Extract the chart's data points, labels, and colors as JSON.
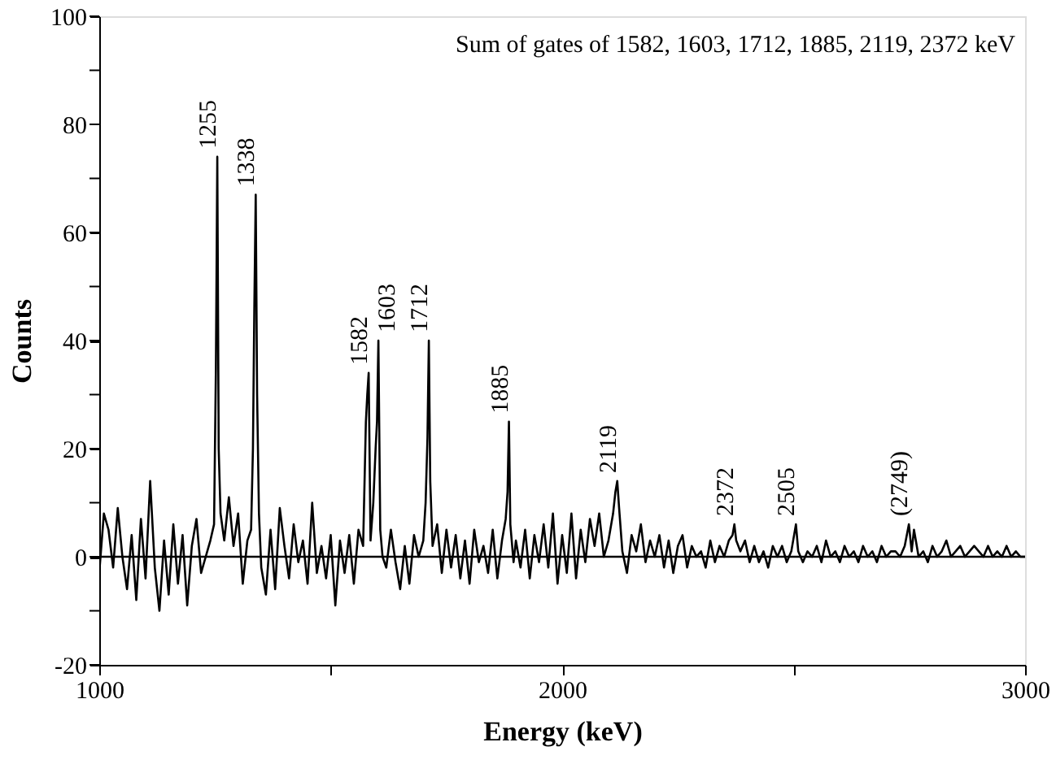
{
  "chart_data": {
    "type": "line",
    "title": "Sum of gates of 1582, 1603, 1712, 1885, 2119, 2372 keV",
    "xlabel": "Energy (keV)",
    "ylabel": "Counts",
    "xlim": [
      1000,
      3000
    ],
    "ylim": [
      -20,
      100
    ],
    "xticks": [
      1000,
      {
        "value": 1500,
        "label": null
      },
      2000,
      {
        "value": 2500,
        "label": null
      },
      3000
    ],
    "yticks": [
      -20,
      {
        "value": -10,
        "label": null
      },
      0,
      {
        "value": 10,
        "label": null
      },
      20,
      {
        "value": 30,
        "label": null
      },
      40,
      {
        "value": 50,
        "label": null
      },
      60,
      {
        "value": 70,
        "label": null
      },
      80,
      {
        "value": 90,
        "label": null
      },
      100
    ],
    "grid": false,
    "marker": "none",
    "line_style": "solid",
    "ref_lines": [
      {
        "axis": "y",
        "value": 0,
        "color": "#000000"
      }
    ],
    "annotations": [
      {
        "text": "1255",
        "x": 1255,
        "y": 74
      },
      {
        "text": "1338",
        "x": 1338,
        "y": 67
      },
      {
        "text": "1582",
        "x": 1582,
        "y": 34
      },
      {
        "text": "1603",
        "x": 1603,
        "y": 40
      },
      {
        "text": "1712",
        "x": 1712,
        "y": 40
      },
      {
        "text": "1885",
        "x": 1885,
        "y": 25
      },
      {
        "text": "2119",
        "x": 2119,
        "y": 14
      },
      {
        "text": "2372",
        "x": 2372,
        "y": 6
      },
      {
        "text": "2505",
        "x": 2505,
        "y": 6
      },
      {
        "text": "(2749)",
        "x": 2749,
        "y": 6
      }
    ],
    "series": [
      {
        "color": "#000000",
        "x": [
          1000,
          1010,
          1020,
          1030,
          1040,
          1050,
          1060,
          1070,
          1080,
          1090,
          1100,
          1110,
          1120,
          1130,
          1140,
          1150,
          1160,
          1170,
          1180,
          1190,
          1200,
          1210,
          1220,
          1230,
          1240,
          1248,
          1252,
          1255,
          1258,
          1262,
          1270,
          1280,
          1290,
          1300,
          1310,
          1320,
          1328,
          1332,
          1335,
          1338,
          1341,
          1345,
          1350,
          1360,
          1370,
          1380,
          1390,
          1400,
          1410,
          1420,
          1430,
          1440,
          1450,
          1460,
          1470,
          1480,
          1490,
          1500,
          1510,
          1520,
          1530,
          1540,
          1550,
          1560,
          1570,
          1576,
          1579,
          1582,
          1586,
          1592,
          1597,
          1600,
          1603,
          1607,
          1612,
          1620,
          1630,
          1640,
          1650,
          1660,
          1670,
          1680,
          1690,
          1700,
          1705,
          1709,
          1712,
          1715,
          1720,
          1730,
          1740,
          1750,
          1760,
          1770,
          1780,
          1790,
          1800,
          1810,
          1820,
          1830,
          1840,
          1850,
          1860,
          1870,
          1878,
          1882,
          1885,
          1888,
          1895,
          1900,
          1910,
          1920,
          1930,
          1940,
          1950,
          1960,
          1970,
          1980,
          1990,
          2000,
          2010,
          2020,
          2030,
          2040,
          2050,
          2060,
          2070,
          2080,
          2090,
          2100,
          2110,
          2115,
          2119,
          2123,
          2130,
          2140,
          2150,
          2160,
          2170,
          2180,
          2190,
          2200,
          2210,
          2220,
          2230,
          2240,
          2250,
          2260,
          2270,
          2280,
          2290,
          2300,
          2310,
          2320,
          2330,
          2340,
          2350,
          2360,
          2368,
          2372,
          2376,
          2385,
          2395,
          2405,
          2415,
          2425,
          2435,
          2445,
          2455,
          2465,
          2475,
          2485,
          2495,
          2505,
          2510,
          2520,
          2530,
          2540,
          2550,
          2560,
          2570,
          2580,
          2590,
          2600,
          2610,
          2620,
          2630,
          2640,
          2650,
          2660,
          2670,
          2680,
          2690,
          2700,
          2710,
          2720,
          2730,
          2740,
          2749,
          2755,
          2760,
          2770,
          2780,
          2790,
          2800,
          2810,
          2820,
          2830,
          2840,
          2850,
          2860,
          2870,
          2880,
          2890,
          2900,
          2910,
          2920,
          2930,
          2940,
          2950,
          2960,
          2970,
          2980,
          2990,
          3000
        ],
        "values": [
          -3,
          8,
          5,
          -2,
          9,
          0,
          -6,
          4,
          -8,
          7,
          -4,
          14,
          -2,
          -10,
          3,
          -7,
          6,
          -5,
          4,
          -9,
          2,
          7,
          -3,
          0,
          3,
          6,
          35,
          74,
          20,
          8,
          3,
          11,
          2,
          8,
          -5,
          3,
          5,
          20,
          46,
          67,
          30,
          8,
          -2,
          -7,
          5,
          -6,
          9,
          2,
          -4,
          6,
          -1,
          3,
          -5,
          10,
          -3,
          2,
          -4,
          4,
          -9,
          3,
          -3,
          4,
          -5,
          5,
          2,
          25,
          30,
          34,
          3,
          10,
          20,
          25,
          40,
          5,
          0,
          -2,
          5,
          -1,
          -6,
          2,
          -5,
          4,
          0,
          3,
          10,
          22,
          40,
          14,
          2,
          6,
          -3,
          5,
          -2,
          4,
          -4,
          3,
          -5,
          5,
          -1,
          2,
          -3,
          5,
          -4,
          3,
          7,
          12,
          25,
          6,
          -1,
          3,
          -2,
          5,
          -4,
          4,
          -1,
          6,
          -2,
          8,
          -5,
          4,
          -3,
          8,
          -4,
          5,
          -1,
          7,
          2,
          8,
          0,
          3,
          8,
          12,
          14,
          9,
          1,
          -3,
          4,
          1,
          6,
          -1,
          3,
          0,
          4,
          -2,
          3,
          -3,
          2,
          4,
          -2,
          2,
          0,
          1,
          -2,
          3,
          -1,
          2,
          0,
          3,
          4,
          6,
          3,
          1,
          3,
          -1,
          2,
          -1,
          1,
          -2,
          2,
          0,
          2,
          -1,
          1,
          6,
          1,
          -1,
          1,
          0,
          2,
          -1,
          3,
          0,
          1,
          -1,
          2,
          0,
          1,
          -1,
          2,
          0,
          1,
          -1,
          2,
          0,
          1,
          1,
          0,
          2,
          6,
          1,
          5,
          0,
          1,
          -1,
          2,
          0,
          1,
          3,
          0,
          1,
          2,
          0,
          1,
          2,
          1,
          0,
          2,
          0,
          1,
          0,
          2,
          0,
          1,
          0,
          0
        ]
      }
    ]
  }
}
